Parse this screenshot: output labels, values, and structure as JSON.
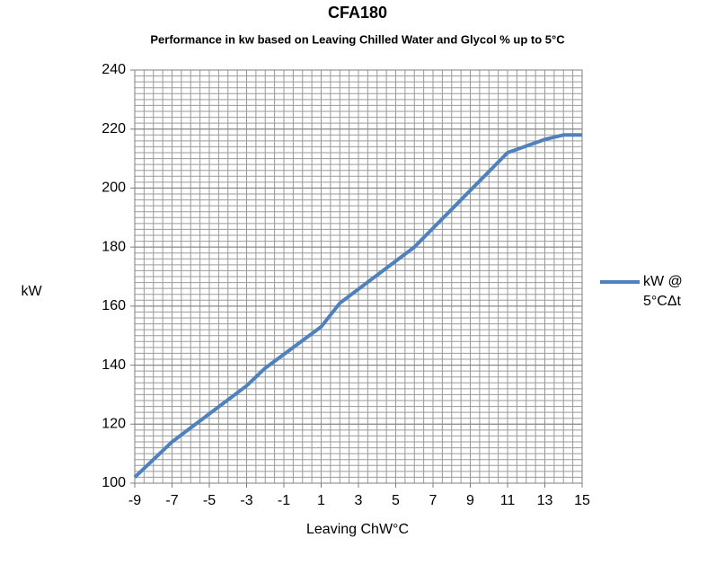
{
  "chart_data": {
    "type": "line",
    "title": "CFA180",
    "subtitle": "Performance in kw based on Leaving Chilled Water and Glycol % up to 5°C",
    "x_label": "Leaving ChW°C",
    "y_label": "kW",
    "x": [
      -9,
      -7,
      -3,
      -2,
      1,
      2,
      6,
      11,
      13,
      14,
      15
    ],
    "series": [
      {
        "name": "kW @ 5°CΔt",
        "color": "#4f81bd",
        "values": [
          102,
          114,
          133,
          139,
          153,
          161,
          180,
          212,
          216.5,
          218,
          218
        ]
      }
    ],
    "xlim": [
      -9,
      15
    ],
    "xticks": [
      -9,
      -7,
      -5,
      -3,
      -1,
      1,
      3,
      5,
      7,
      9,
      11,
      13,
      15
    ],
    "ylim": [
      100,
      240
    ],
    "yticks": [
      100,
      120,
      140,
      160,
      180,
      200,
      220,
      240
    ],
    "grid": true,
    "x_minor_step": 0.5,
    "y_minor_step": 2,
    "legend": "right"
  }
}
